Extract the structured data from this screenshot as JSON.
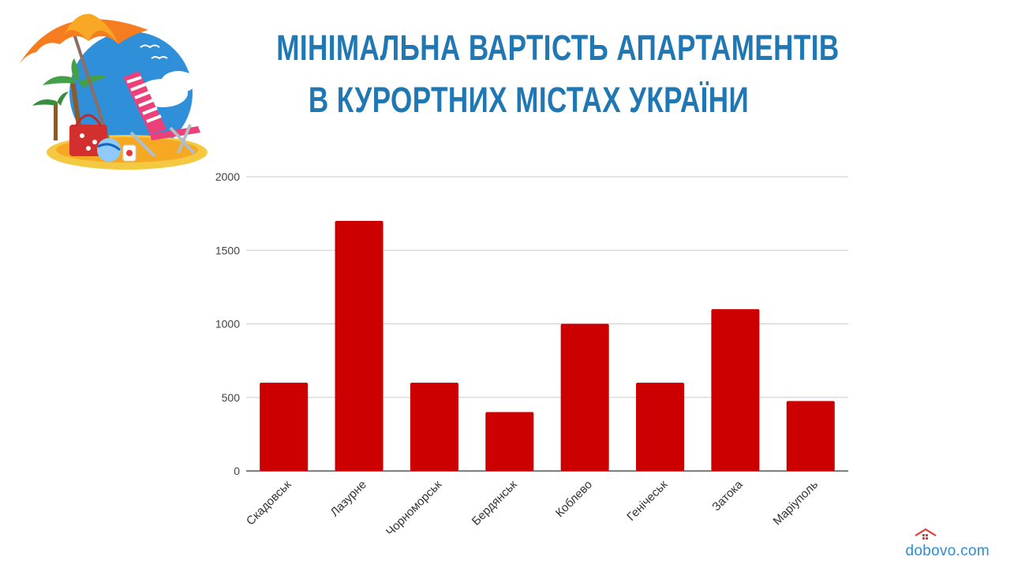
{
  "title": {
    "line1": "Мінімальна вартість апартаментів",
    "line2": "в курортних містах України"
  },
  "chart_data": {
    "type": "bar",
    "categories": [
      "Скадовськ",
      "Лазурне",
      "Чорноморськ",
      "Бердянськ",
      "Коблево",
      "Генічеськ",
      "Затока",
      "Маріуполь"
    ],
    "values": [
      600,
      1700,
      600,
      400,
      1000,
      600,
      1100,
      475
    ],
    "ylim": [
      0,
      2000
    ],
    "yticks": [
      0,
      500,
      1000,
      1500,
      2000
    ],
    "grid": true,
    "bar_color": "#cc0000"
  },
  "brand": {
    "text": "dobovo.com",
    "color": "#2b8fd6"
  },
  "icons": {
    "illustration": "beach-umbrella-chair-illustration",
    "brand_icon": "house-icon"
  }
}
